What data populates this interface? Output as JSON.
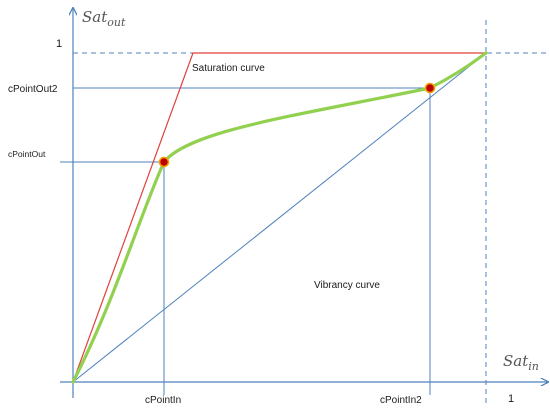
{
  "axes": {
    "x_title_base": "Sat",
    "x_title_sub": "in",
    "y_title_base": "Sat",
    "y_title_sub": "out",
    "y_tick_one": "1",
    "x_tick_one": "1"
  },
  "points": {
    "cpoint_out": "cPointOut",
    "cpoint_out2": "cPointOut2",
    "cpoint_in": "cPointIn",
    "cpoint_in2": "cPointIn2"
  },
  "curves": {
    "saturation_label": "Saturation curve",
    "vibrancy_label": "Vibrancy curve"
  },
  "colors": {
    "axis": "#4f81bd",
    "saturation": "#e0413c",
    "vibrancy": "#92d050",
    "marker_fill": "#c00000",
    "marker_ring": "#f2a000"
  }
}
